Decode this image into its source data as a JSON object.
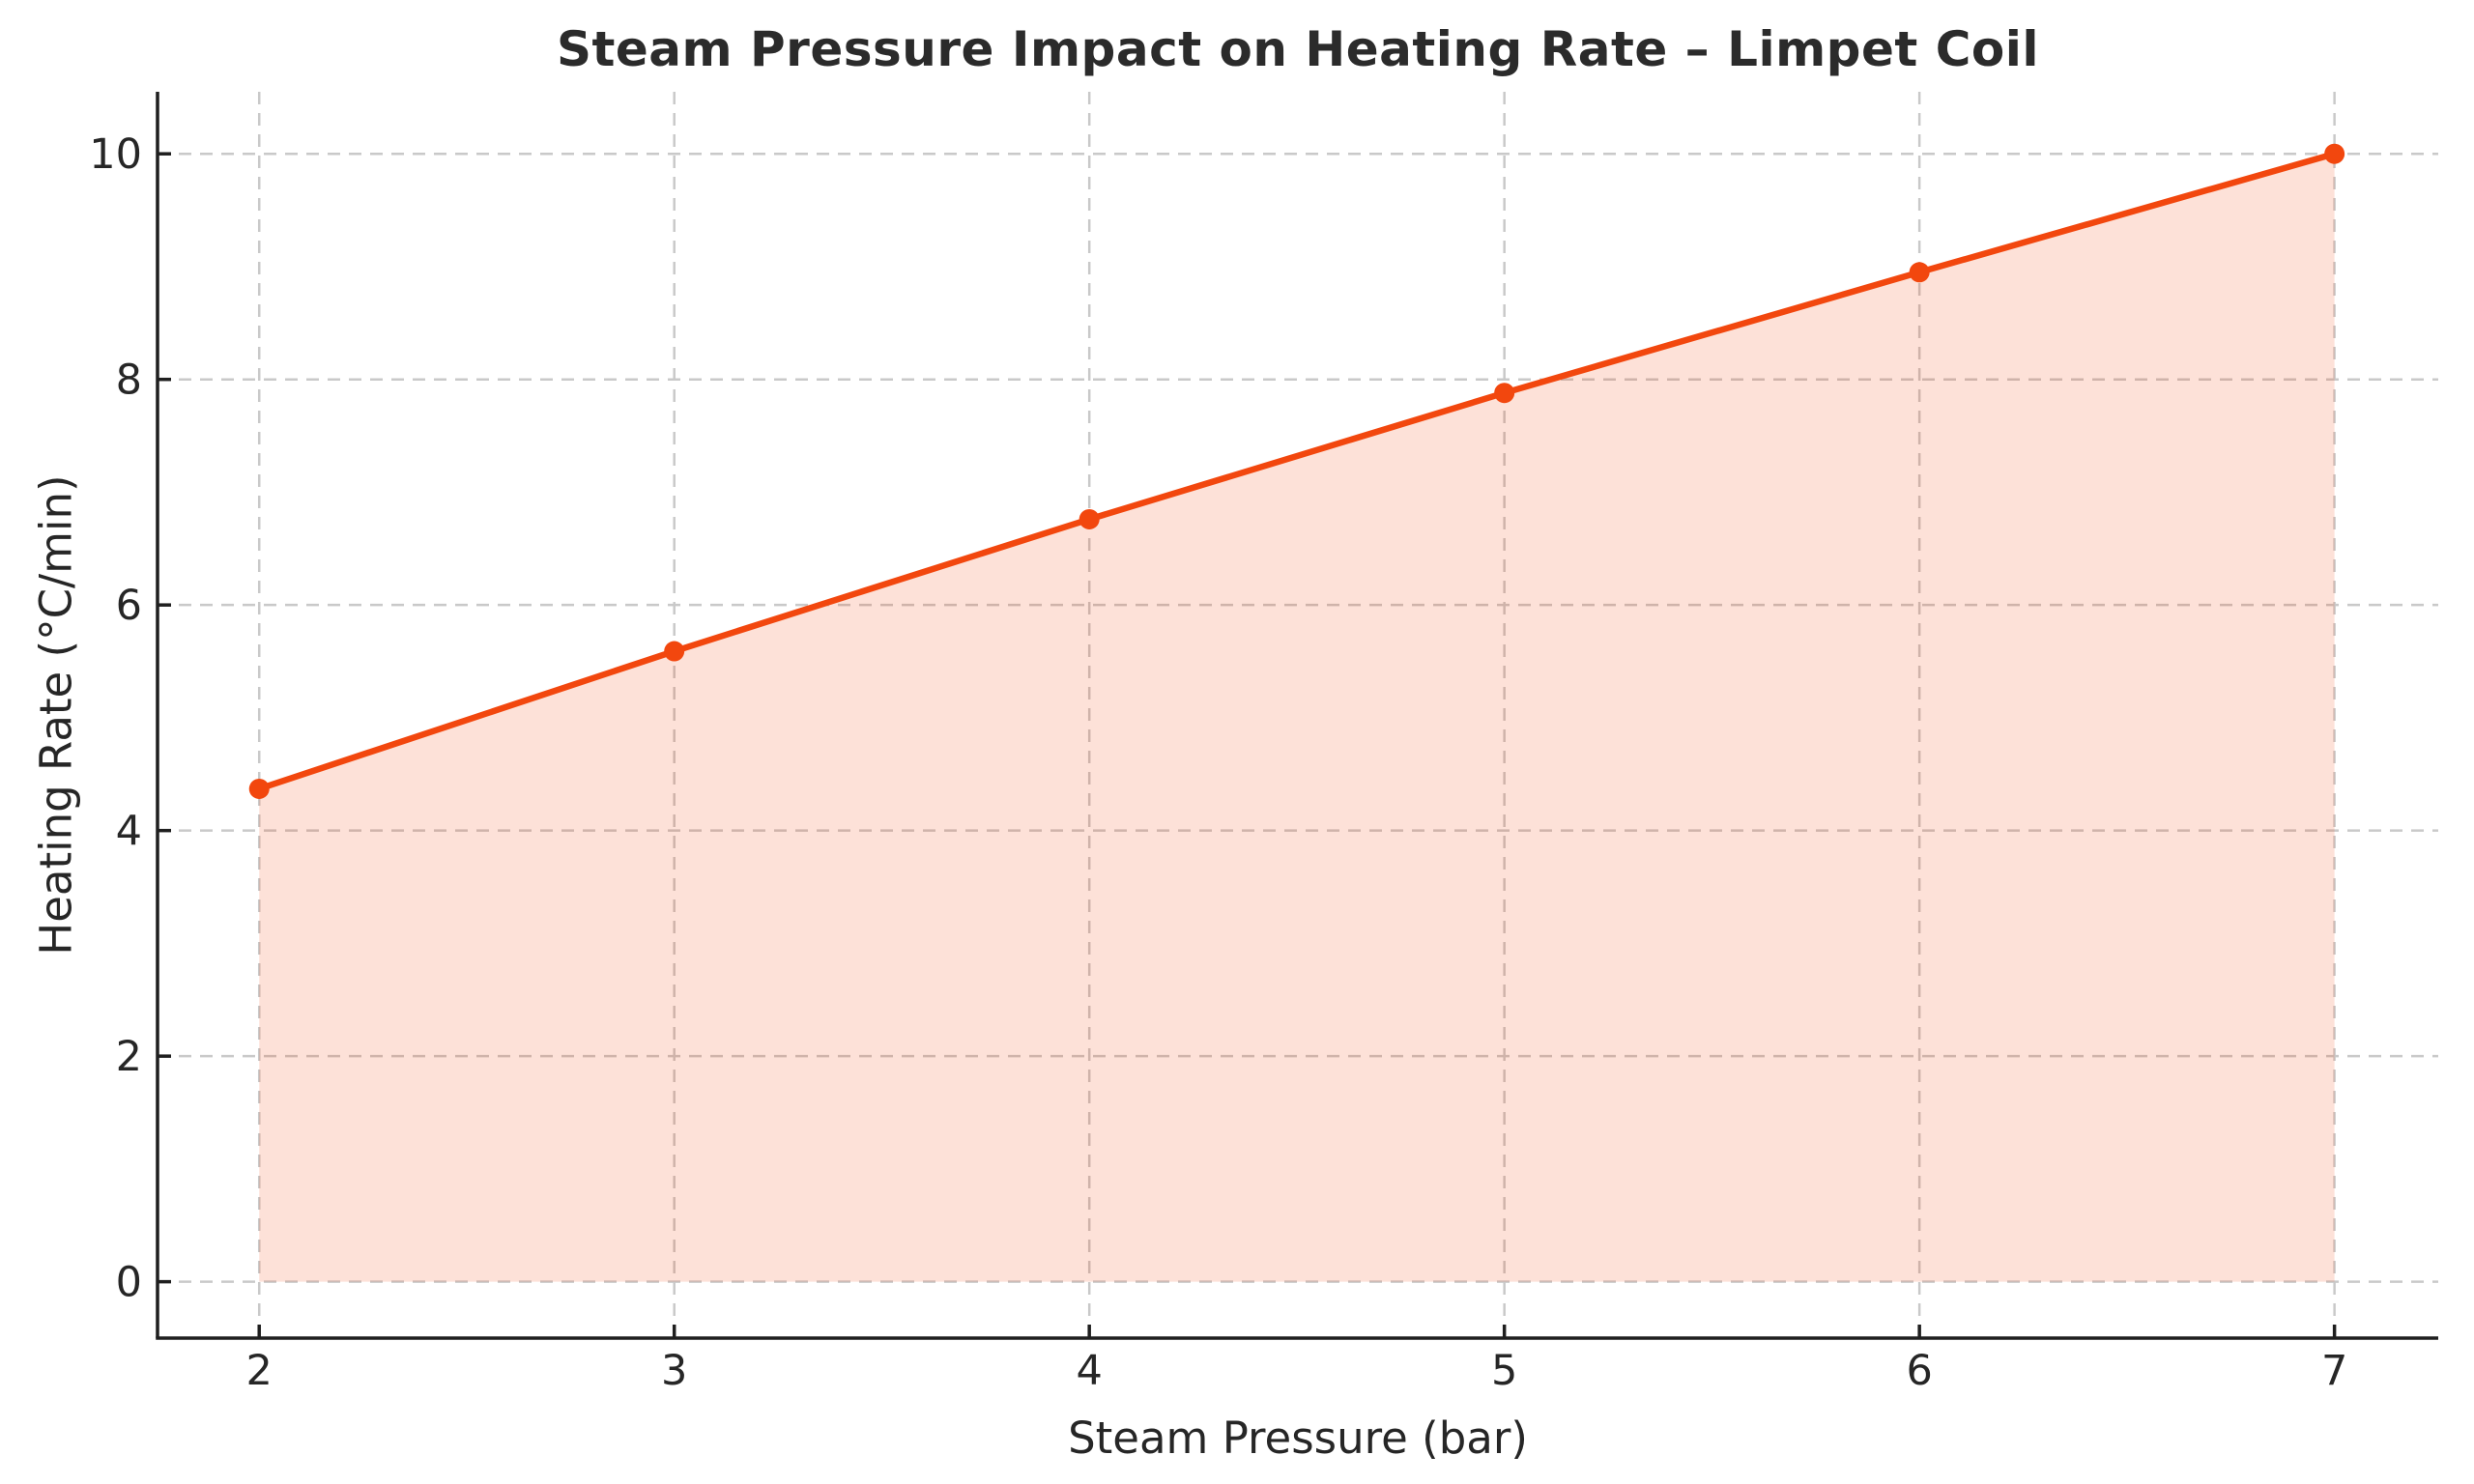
{
  "chart_data": {
    "type": "line",
    "title": "Steam Pressure Impact on Heating Rate – Limpet Coil",
    "xlabel": "Steam Pressure (bar)",
    "ylabel": "Heating Rate (°C/min)",
    "x": [
      2,
      3,
      4,
      5,
      6,
      7
    ],
    "y": [
      4.37,
      5.59,
      6.76,
      7.88,
      8.95,
      10.0
    ],
    "x_ticks": [
      2,
      3,
      4,
      5,
      6,
      7
    ],
    "y_ticks": [
      0,
      2,
      4,
      6,
      8,
      10
    ],
    "x_tick_labels": [
      "2",
      "3",
      "4",
      "5",
      "6",
      "7"
    ],
    "y_tick_labels": [
      "0",
      "2",
      "4",
      "6",
      "8",
      "10"
    ],
    "xlim": [
      1.755,
      7.25
    ],
    "ylim": [
      -0.5,
      10.55
    ],
    "grid": true,
    "grid_style": "dashed",
    "legend": false,
    "marker": "circle",
    "area_fill": true,
    "area_baseline": 0,
    "colors": {
      "line": "#F2470E",
      "fill": "#F2470E",
      "fill_opacity": 0.16,
      "grid": "#C9C9C9",
      "spine": "#1F1F1F",
      "text": "#262626",
      "title": "#2B2B2B",
      "background": "#FFFFFF"
    }
  }
}
